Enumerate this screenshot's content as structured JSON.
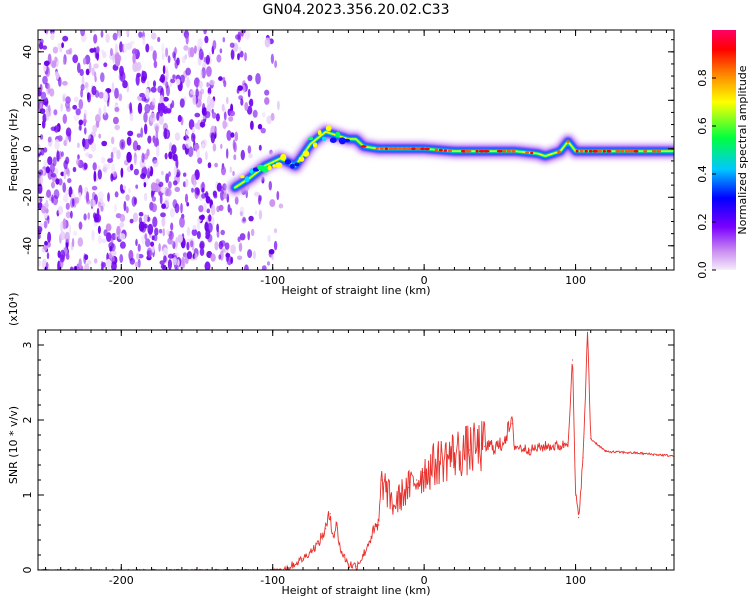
{
  "figure": {
    "title": "GN04.2023.356.20.02.C33"
  },
  "chart_data": [
    {
      "type": "heatmap",
      "xlabel": "Height of straight line (km)",
      "ylabel": "Frequency (Hz)",
      "xlim": [
        -255,
        165
      ],
      "ylim": [
        -50,
        49
      ],
      "xticks": [
        -200,
        -100,
        0,
        100
      ],
      "yticks": [
        -40,
        -20,
        0,
        20,
        40
      ],
      "colorbar": {
        "label": "Normalized spectral amplitude",
        "range": [
          0.0,
          1.0
        ],
        "ticks": [
          0.0,
          0.2,
          0.4,
          0.6,
          0.8
        ],
        "colormap": [
          "#e0b3f5",
          "#7a00ff",
          "#0000ff",
          "#00e5ff",
          "#00ff40",
          "#ffff00",
          "#ff8000",
          "#ff0000",
          "#ff0066"
        ]
      },
      "ridge": {
        "x": [
          -125,
          -115,
          -105,
          -95,
          -85,
          -75,
          -65,
          -55,
          -50,
          -45,
          -40,
          -30,
          -20,
          -10,
          0,
          20,
          40,
          60,
          75,
          80,
          90,
          95,
          100,
          120,
          140,
          165
        ],
        "y": [
          -16,
          -12,
          -7,
          -4,
          -7,
          2,
          7,
          5,
          4,
          4,
          1,
          0,
          0,
          0,
          0,
          -1,
          -1,
          -1,
          -2,
          -3,
          -1,
          3,
          -1,
          -1,
          -1,
          -1
        ]
      },
      "noise_region": {
        "x": [
          -255,
          -105
        ],
        "y": [
          -50,
          49
        ]
      }
    },
    {
      "type": "line",
      "xlabel": "Height of straight line (km)",
      "ylabel": "SNR (10 * v/v)",
      "y_multiplier": "(x10⁴)",
      "xlim": [
        -255,
        165
      ],
      "ylim": [
        0,
        3.2
      ],
      "xticks": [
        -200,
        -100,
        0,
        100
      ],
      "yticks": [
        0,
        1,
        2,
        3
      ],
      "color": "#e8312c",
      "series": [
        {
          "x": [
            -255,
            -100,
            -90,
            -80,
            -70,
            -65,
            -62,
            -60,
            -58,
            -55,
            -50,
            -45,
            -40,
            -35,
            -30,
            -28,
            -20,
            -15,
            -10,
            -5,
            0,
            10,
            20,
            30,
            40,
            50,
            58,
            60,
            70,
            80,
            90,
            95,
            98,
            100,
            102,
            105,
            108,
            110,
            120,
            140,
            165
          ],
          "y": [
            0.0,
            0.0,
            0.03,
            0.15,
            0.35,
            0.55,
            0.75,
            0.45,
            0.6,
            0.25,
            0.08,
            0.05,
            0.2,
            0.45,
            0.6,
            1.2,
            0.85,
            1.0,
            1.1,
            1.2,
            1.3,
            1.45,
            1.55,
            1.6,
            1.65,
            1.65,
            1.95,
            1.65,
            1.6,
            1.65,
            1.65,
            1.7,
            2.8,
            1.0,
            0.7,
            1.5,
            3.2,
            1.75,
            1.58,
            1.56,
            1.52
          ]
        }
      ]
    }
  ]
}
